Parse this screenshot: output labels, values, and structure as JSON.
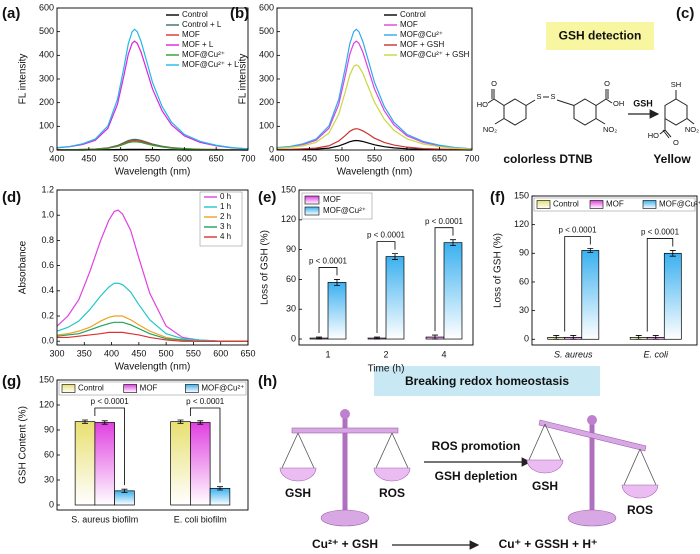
{
  "chart_data": [
    {
      "type": "line",
      "label": "(a)",
      "x_label": "Wavelength (nm)",
      "y_label": "FL intensity",
      "x": [
        400,
        420,
        440,
        460,
        480,
        495,
        505,
        512,
        518,
        522,
        526,
        532,
        540,
        550,
        565,
        580,
        600,
        625,
        650,
        675,
        700
      ],
      "xlim": [
        400,
        700
      ],
      "xticks": [
        400,
        450,
        500,
        550,
        600,
        650,
        700
      ],
      "ylim": [
        0,
        600
      ],
      "yticks": [
        0,
        100,
        200,
        300,
        400,
        500,
        600
      ],
      "legend": "upper right",
      "series": [
        {
          "name": "Control",
          "color": "#000000",
          "values": [
            0,
            0,
            0,
            1,
            1,
            2,
            2,
            3,
            3,
            3,
            3,
            3,
            2,
            2,
            1,
            1,
            0,
            0,
            0,
            0,
            0
          ]
        },
        {
          "name": "Control + L",
          "color": "#3d6b6b",
          "values": [
            1,
            1,
            2,
            4,
            9,
            19,
            31,
            40,
            44,
            45,
            44,
            41,
            34,
            25,
            16,
            10,
            6,
            3,
            2,
            1,
            0
          ]
        },
        {
          "name": "MOF",
          "color": "#e03030",
          "values": [
            1,
            1,
            2,
            4,
            8,
            17,
            27,
            35,
            39,
            40,
            39,
            36,
            30,
            22,
            14,
            9,
            5,
            3,
            2,
            1,
            0
          ]
        },
        {
          "name": "MOF + L",
          "color": "#e020e0",
          "values": [
            9,
            14,
            23,
            41,
            92,
            193,
            313,
            405,
            451,
            460,
            451,
            414,
            345,
            258,
            166,
            106,
            60,
            32,
            18,
            9,
            5
          ]
        },
        {
          "name": "MOF@Cu²⁺",
          "color": "#2ca02c",
          "values": [
            1,
            1,
            2,
            3,
            7,
            15,
            24,
            31,
            34,
            35,
            34,
            32,
            26,
            20,
            13,
            8,
            5,
            2,
            1,
            1,
            0
          ]
        },
        {
          "name": "MOF@Cu²⁺ + L",
          "color": "#20b8e8",
          "values": [
            10,
            15,
            26,
            46,
            102,
            214,
            347,
            449,
            500,
            510,
            500,
            459,
            383,
            286,
            184,
            117,
            66,
            36,
            20,
            10,
            5
          ]
        }
      ]
    },
    {
      "type": "line",
      "label": "(b)",
      "x_label": "Wavelength (nm)",
      "y_label": "FL intensity",
      "x": [
        400,
        420,
        440,
        460,
        480,
        495,
        505,
        512,
        518,
        522,
        526,
        532,
        540,
        550,
        565,
        580,
        600,
        625,
        650,
        675,
        700
      ],
      "xlim": [
        400,
        700
      ],
      "xticks": [
        400,
        450,
        500,
        550,
        600,
        650,
        700
      ],
      "ylim": [
        0,
        600
      ],
      "yticks": [
        0,
        100,
        200,
        300,
        400,
        500,
        600
      ],
      "legend": "upper right",
      "series": [
        {
          "name": "Control",
          "color": "#000000",
          "values": [
            1,
            1,
            2,
            4,
            8,
            17,
            27,
            35,
            39,
            40,
            39,
            36,
            30,
            22,
            14,
            9,
            5,
            3,
            2,
            1,
            0
          ]
        },
        {
          "name": "MOF",
          "color": "#e040e0",
          "values": [
            9,
            14,
            23,
            41,
            92,
            193,
            313,
            405,
            451,
            460,
            451,
            414,
            345,
            258,
            166,
            106,
            60,
            32,
            18,
            9,
            5
          ]
        },
        {
          "name": "MOF@Cu²⁺",
          "color": "#30a8f0",
          "values": [
            10,
            15,
            26,
            46,
            102,
            214,
            347,
            449,
            500,
            510,
            500,
            459,
            383,
            286,
            184,
            117,
            66,
            36,
            20,
            10,
            5
          ]
        },
        {
          "name": "MOF + GSH",
          "color": "#d03030",
          "values": [
            2,
            3,
            5,
            8,
            18,
            38,
            61,
            79,
            88,
            90,
            88,
            81,
            68,
            50,
            32,
            21,
            12,
            6,
            4,
            2,
            1
          ]
        },
        {
          "name": "MOF@Cu²⁺ + GSH",
          "color": "#c8d840",
          "values": [
            7,
            11,
            18,
            32,
            72,
            151,
            245,
            317,
            353,
            360,
            353,
            324,
            270,
            202,
            130,
            83,
            47,
            25,
            14,
            7,
            4
          ]
        }
      ]
    },
    {
      "type": "line",
      "label": "(d)",
      "x_label": "Wavelength (nm)",
      "y_label": "Absorbance",
      "x": [
        300,
        320,
        340,
        360,
        380,
        395,
        405,
        412,
        420,
        435,
        450,
        470,
        500,
        530,
        560,
        600,
        650
      ],
      "xlim": [
        300,
        650
      ],
      "xticks": [
        300,
        350,
        400,
        450,
        500,
        550,
        600,
        650
      ],
      "ylim": [
        -0.03,
        1.2
      ],
      "yticks": [
        {
          "value": 0,
          "label": "0.0"
        },
        0.2,
        0.4,
        0.6,
        0.8,
        {
          "value": 1,
          "label": "1.0"
        },
        1.2
      ],
      "legend": "upper right",
      "series": [
        {
          "name": "0 h",
          "color": "#e040e0",
          "values": [
            0.12,
            0.2,
            0.33,
            0.55,
            0.8,
            0.96,
            1.03,
            1.04,
            1.01,
            0.88,
            0.66,
            0.38,
            0.12,
            0.03,
            0.01,
            0,
            0
          ]
        },
        {
          "name": "1 h",
          "color": "#20c8c8",
          "values": [
            0.08,
            0.11,
            0.16,
            0.25,
            0.36,
            0.43,
            0.46,
            0.46,
            0.45,
            0.39,
            0.29,
            0.17,
            0.06,
            0.02,
            0.01,
            0,
            0
          ]
        },
        {
          "name": "2 h",
          "color": "#f0a020",
          "values": [
            0.05,
            0.06,
            0.08,
            0.11,
            0.16,
            0.19,
            0.2,
            0.2,
            0.2,
            0.17,
            0.13,
            0.08,
            0.03,
            0.01,
            0,
            0,
            0
          ]
        },
        {
          "name": "3 h",
          "color": "#20a060",
          "values": [
            0.04,
            0.05,
            0.06,
            0.09,
            0.12,
            0.14,
            0.15,
            0.15,
            0.15,
            0.13,
            0.1,
            0.06,
            0.02,
            0.01,
            0,
            0,
            0
          ]
        },
        {
          "name": "4 h",
          "color": "#e03030",
          "values": [
            0.03,
            0.03,
            0.04,
            0.05,
            0.06,
            0.07,
            0.07,
            0.07,
            0.07,
            0.06,
            0.05,
            0.03,
            0.01,
            0,
            0,
            0,
            0
          ]
        }
      ]
    },
    {
      "type": "bar",
      "label": "(e)",
      "x_label": "Time (h)",
      "y_label": "Loss of GSH (%)",
      "categories": [
        "1",
        "2",
        "4"
      ],
      "ylim": [
        -6,
        150
      ],
      "yticks": [
        0,
        30,
        60,
        90,
        120,
        150
      ],
      "legend": "upper left",
      "annotations": [
        "p < 0.0001",
        "p < 0.0001",
        "p < 0.0001"
      ],
      "series": [
        {
          "name": "MOF",
          "color": "#e040e0",
          "values": [
            1,
            1,
            2
          ],
          "errors": [
            1,
            1,
            2
          ]
        },
        {
          "name": "MOF@Cu²⁺",
          "color": "#3ab0f0",
          "values": [
            57,
            83,
            97
          ],
          "errors": [
            3,
            3,
            3
          ]
        }
      ]
    },
    {
      "type": "bar",
      "label": "(f)",
      "y_label": "Loss of GSH (%)",
      "categories": [
        "S. aureus",
        "E. coli"
      ],
      "ylim": [
        -6,
        150
      ],
      "yticks": [
        0,
        30,
        60,
        90,
        120,
        150
      ],
      "legend": "top",
      "annotations": [
        "p < 0.0001",
        "p < 0.0001"
      ],
      "series": [
        {
          "name": "Control",
          "color": "#e8e070",
          "values": [
            2,
            2
          ],
          "errors": [
            2,
            2
          ]
        },
        {
          "name": "MOF",
          "color": "#e040e0",
          "values": [
            2,
            2
          ],
          "errors": [
            2,
            2
          ]
        },
        {
          "name": "MOF@Cu²⁺",
          "color": "#3ab0f0",
          "values": [
            93,
            90
          ],
          "errors": [
            2,
            3
          ]
        }
      ]
    },
    {
      "type": "bar",
      "label": "(g)",
      "y_label": "GSH Content (%)",
      "categories": [
        "S. aureus biofilm",
        "E. coli biofilm"
      ],
      "ylim": [
        -6,
        150
      ],
      "yticks": [
        0,
        30,
        60,
        90,
        120,
        150
      ],
      "legend": "top",
      "annotations": [
        "p < 0.0001",
        "p < 0.0001"
      ],
      "series": [
        {
          "name": "Control",
          "color": "#e8e070",
          "values": [
            100,
            100
          ],
          "errors": [
            2,
            2
          ]
        },
        {
          "name": "MOF",
          "color": "#e040e0",
          "values": [
            99,
            99
          ],
          "errors": [
            2,
            2
          ]
        },
        {
          "name": "MOF@Cu²⁺",
          "color": "#3ab0f0",
          "values": [
            17,
            20
          ],
          "errors": [
            2,
            2
          ]
        }
      ]
    }
  ],
  "diagram_c": {
    "label": "(c)",
    "title": "GSH detection",
    "reagent": "GSH",
    "left_caption": "colorless DTNB",
    "right_caption": "Yellow",
    "atoms": [
      "O",
      "HO",
      "NO₂",
      "S",
      "S",
      "O",
      "OH",
      "NO₂",
      "SH",
      "O",
      "HO",
      "NO₂"
    ]
  },
  "diagram_h": {
    "label": "(h)",
    "title": "Breaking redox homeostasis",
    "left_pan": "GSH",
    "right_pan": "ROS",
    "arrow_top": "ROS promotion",
    "arrow_bottom": "GSH depletion",
    "left_pan_2": "GSH",
    "right_pan_2": "ROS",
    "reactants": "Cu²⁺ + GSH",
    "products": "Cu⁺ + GSSH + H⁺"
  }
}
